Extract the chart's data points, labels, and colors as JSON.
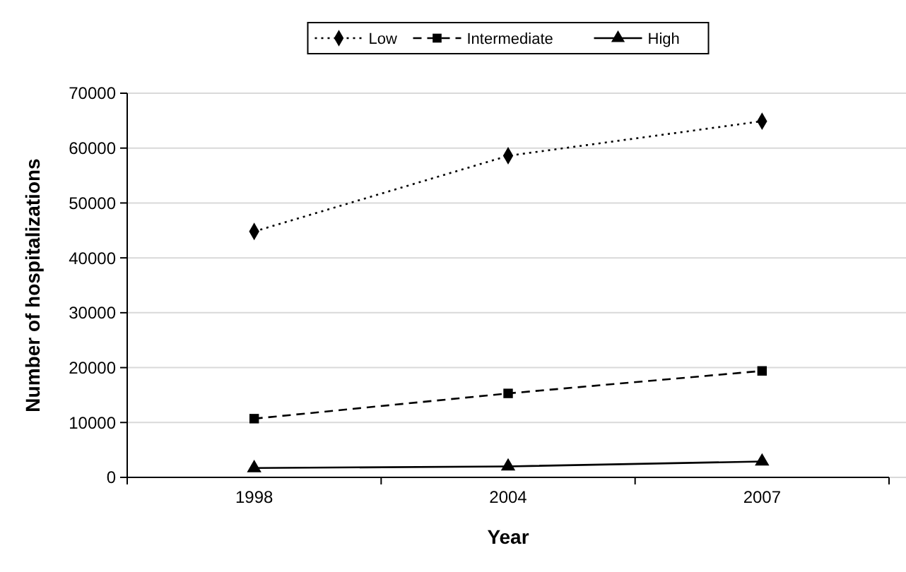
{
  "chart_data": {
    "type": "line",
    "xlabel": "Year",
    "ylabel": "Number of hospitalizations",
    "categories": [
      "1998",
      "2004",
      "2007"
    ],
    "series": [
      {
        "name": "Low",
        "color": "#000000",
        "values": [
          44800,
          58600,
          64900
        ],
        "marker": "diamond",
        "line_style": "dotted"
      },
      {
        "name": "Intermediate",
        "color": "#000000",
        "values": [
          10700,
          15300,
          19400
        ],
        "marker": "square",
        "line_style": "dashed"
      },
      {
        "name": "High",
        "color": "#000000",
        "values": [
          1700,
          2000,
          2900
        ],
        "marker": "triangle",
        "line_style": "solid"
      }
    ],
    "ylim": [
      0,
      70000
    ],
    "yticks": [
      0,
      10000,
      20000,
      30000,
      40000,
      50000,
      60000,
      70000
    ],
    "grid": "y",
    "legend": "top"
  }
}
